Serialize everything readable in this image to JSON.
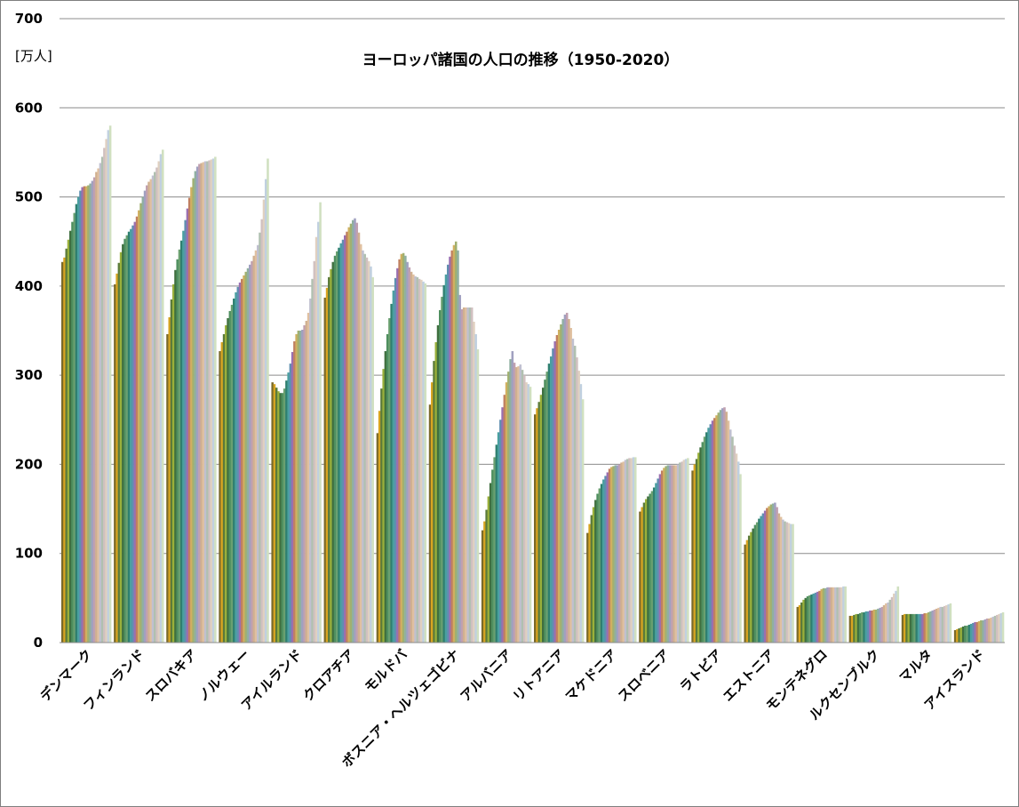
{
  "chart_data": {
    "type": "bar",
    "title": "ヨーロッパ諸国の人口の推移（1950-2020）",
    "unit_label": "[万人]",
    "ylim": [
      0,
      700
    ],
    "yticks": [
      0,
      100,
      200,
      300,
      400,
      500,
      600,
      700
    ],
    "grid": true,
    "years": {
      "start": 1950,
      "end": 2020
    },
    "countries": [
      {
        "name": "デンマーク",
        "values": [
          427,
          432,
          442,
          452,
          462,
          472,
          482,
          492,
          500,
          507,
          511,
          512,
          512,
          513,
          515,
          518,
          522,
          528,
          532,
          538,
          545,
          555,
          565,
          575,
          580
        ]
      },
      {
        "name": "フィンランド",
        "values": [
          402,
          414,
          426,
          438,
          447,
          453,
          457,
          461,
          464,
          468,
          472,
          478,
          485,
          493,
          500,
          507,
          513,
          517,
          520,
          524,
          528,
          533,
          540,
          548,
          553
        ]
      },
      {
        "name": "スロバキア",
        "values": [
          346,
          365,
          385,
          402,
          418,
          430,
          441,
          451,
          462,
          474,
          487,
          499,
          511,
          521,
          529,
          534,
          537,
          538,
          539,
          540,
          540,
          541,
          542,
          543,
          545
        ]
      },
      {
        "name": "ノルウェー",
        "values": [
          327,
          337,
          346,
          356,
          364,
          372,
          379,
          386,
          393,
          399,
          404,
          408,
          412,
          416,
          420,
          424,
          428,
          434,
          440,
          446,
          460,
          475,
          497,
          520,
          543
        ]
      },
      {
        "name": "アイルランド",
        "values": [
          292,
          290,
          286,
          282,
          280,
          280,
          285,
          294,
          303,
          313,
          326,
          338,
          346,
          350,
          350,
          351,
          356,
          361,
          370,
          386,
          408,
          428,
          455,
          472,
          494
        ]
      },
      {
        "name": "クロアチア",
        "values": [
          387,
          398,
          410,
          419,
          427,
          434,
          439,
          443,
          448,
          452,
          457,
          461,
          466,
          470,
          474,
          476,
          471,
          460,
          447,
          440,
          436,
          432,
          428,
          422,
          410
        ]
      },
      {
        "name": "モルドバ",
        "values": [
          235,
          260,
          285,
          307,
          327,
          346,
          364,
          380,
          395,
          409,
          420,
          430,
          436,
          437,
          434,
          427,
          421,
          416,
          413,
          411,
          410,
          408,
          407,
          405,
          403
        ]
      },
      {
        "name": "ボスニア・ヘルツェゴビナ",
        "values": [
          267,
          292,
          316,
          337,
          356,
          373,
          388,
          401,
          413,
          424,
          433,
          440,
          446,
          450,
          440,
          390,
          374,
          376,
          376,
          376,
          376,
          376,
          360,
          346,
          329
        ]
      },
      {
        "name": "アルバニア",
        "values": [
          126,
          136,
          149,
          164,
          179,
          194,
          208,
          222,
          236,
          250,
          264,
          278,
          292,
          304,
          318,
          327,
          314,
          309,
          310,
          312,
          306,
          300,
          292,
          290,
          287
        ]
      },
      {
        "name": "リトアニア",
        "values": [
          256,
          263,
          270,
          278,
          286,
          295,
          304,
          313,
          321,
          330,
          338,
          345,
          351,
          357,
          363,
          368,
          370,
          363,
          353,
          341,
          333,
          320,
          305,
          290,
          273
        ]
      },
      {
        "name": "マケドニア",
        "values": [
          123,
          133,
          143,
          152,
          160,
          167,
          173,
          178,
          183,
          187,
          191,
          195,
          197,
          198,
          199,
          199,
          200,
          202,
          203,
          205,
          206,
          207,
          207,
          208,
          208
        ]
      },
      {
        "name": "スロベニア",
        "values": [
          147,
          152,
          157,
          161,
          164,
          167,
          170,
          174,
          179,
          184,
          189,
          193,
          196,
          198,
          199,
          199,
          199,
          199,
          199,
          200,
          202,
          203,
          205,
          206,
          207
        ]
      },
      {
        "name": "ラトビア",
        "values": [
          193,
          200,
          206,
          213,
          219,
          225,
          231,
          236,
          241,
          245,
          249,
          252,
          255,
          258,
          261,
          263,
          264,
          259,
          249,
          239,
          231,
          221,
          212,
          203,
          189
        ]
      },
      {
        "name": "エストニア",
        "values": [
          110,
          115,
          120,
          124,
          128,
          132,
          135,
          139,
          142,
          145,
          148,
          151,
          153,
          155,
          156,
          157,
          152,
          145,
          141,
          138,
          136,
          135,
          134,
          133,
          133
        ]
      },
      {
        "name": "モンテネグロ",
        "values": [
          40,
          42,
          45,
          48,
          50,
          52,
          53,
          54,
          55,
          56,
          57,
          58,
          60,
          61,
          61,
          62,
          62,
          62,
          62,
          62,
          62,
          62,
          62,
          63,
          63
        ]
      },
      {
        "name": "ルクセンブルク",
        "values": [
          30,
          30,
          31,
          32,
          32,
          33,
          34,
          34,
          35,
          35,
          36,
          36,
          37,
          37,
          38,
          39,
          40,
          42,
          44,
          45,
          48,
          51,
          55,
          58,
          63
        ]
      },
      {
        "name": "マルタ",
        "values": [
          31,
          32,
          32,
          32,
          32,
          32,
          32,
          32,
          32,
          32,
          32,
          33,
          33,
          34,
          35,
          36,
          37,
          38,
          39,
          40,
          40,
          41,
          42,
          43,
          44
        ]
      },
      {
        "name": "アイスランド",
        "values": [
          14,
          15,
          16,
          17,
          18,
          19,
          19,
          20,
          21,
          22,
          23,
          23,
          24,
          25,
          25,
          26,
          27,
          27,
          28,
          29,
          30,
          31,
          32,
          33,
          34
        ]
      }
    ],
    "year_colors": [
      "#7a6a2a",
      "#d9a520",
      "#5a7a3a",
      "#9ab03a",
      "#3f6f3f",
      "#4f8f5f",
      "#6aa070",
      "#2f7f6f",
      "#4aa0a0",
      "#5f8fb0",
      "#9a6fb0",
      "#c07f60",
      "#d0b060",
      "#a0b070",
      "#8fb0a0",
      "#a0a0c0",
      "#c0a0b0",
      "#d0b090",
      "#e0c0a0",
      "#c0c0d0",
      "#b0c0b0",
      "#d0c0c0",
      "#e0d0c0",
      "#c0d0e0",
      "#d0e0c0"
    ]
  }
}
